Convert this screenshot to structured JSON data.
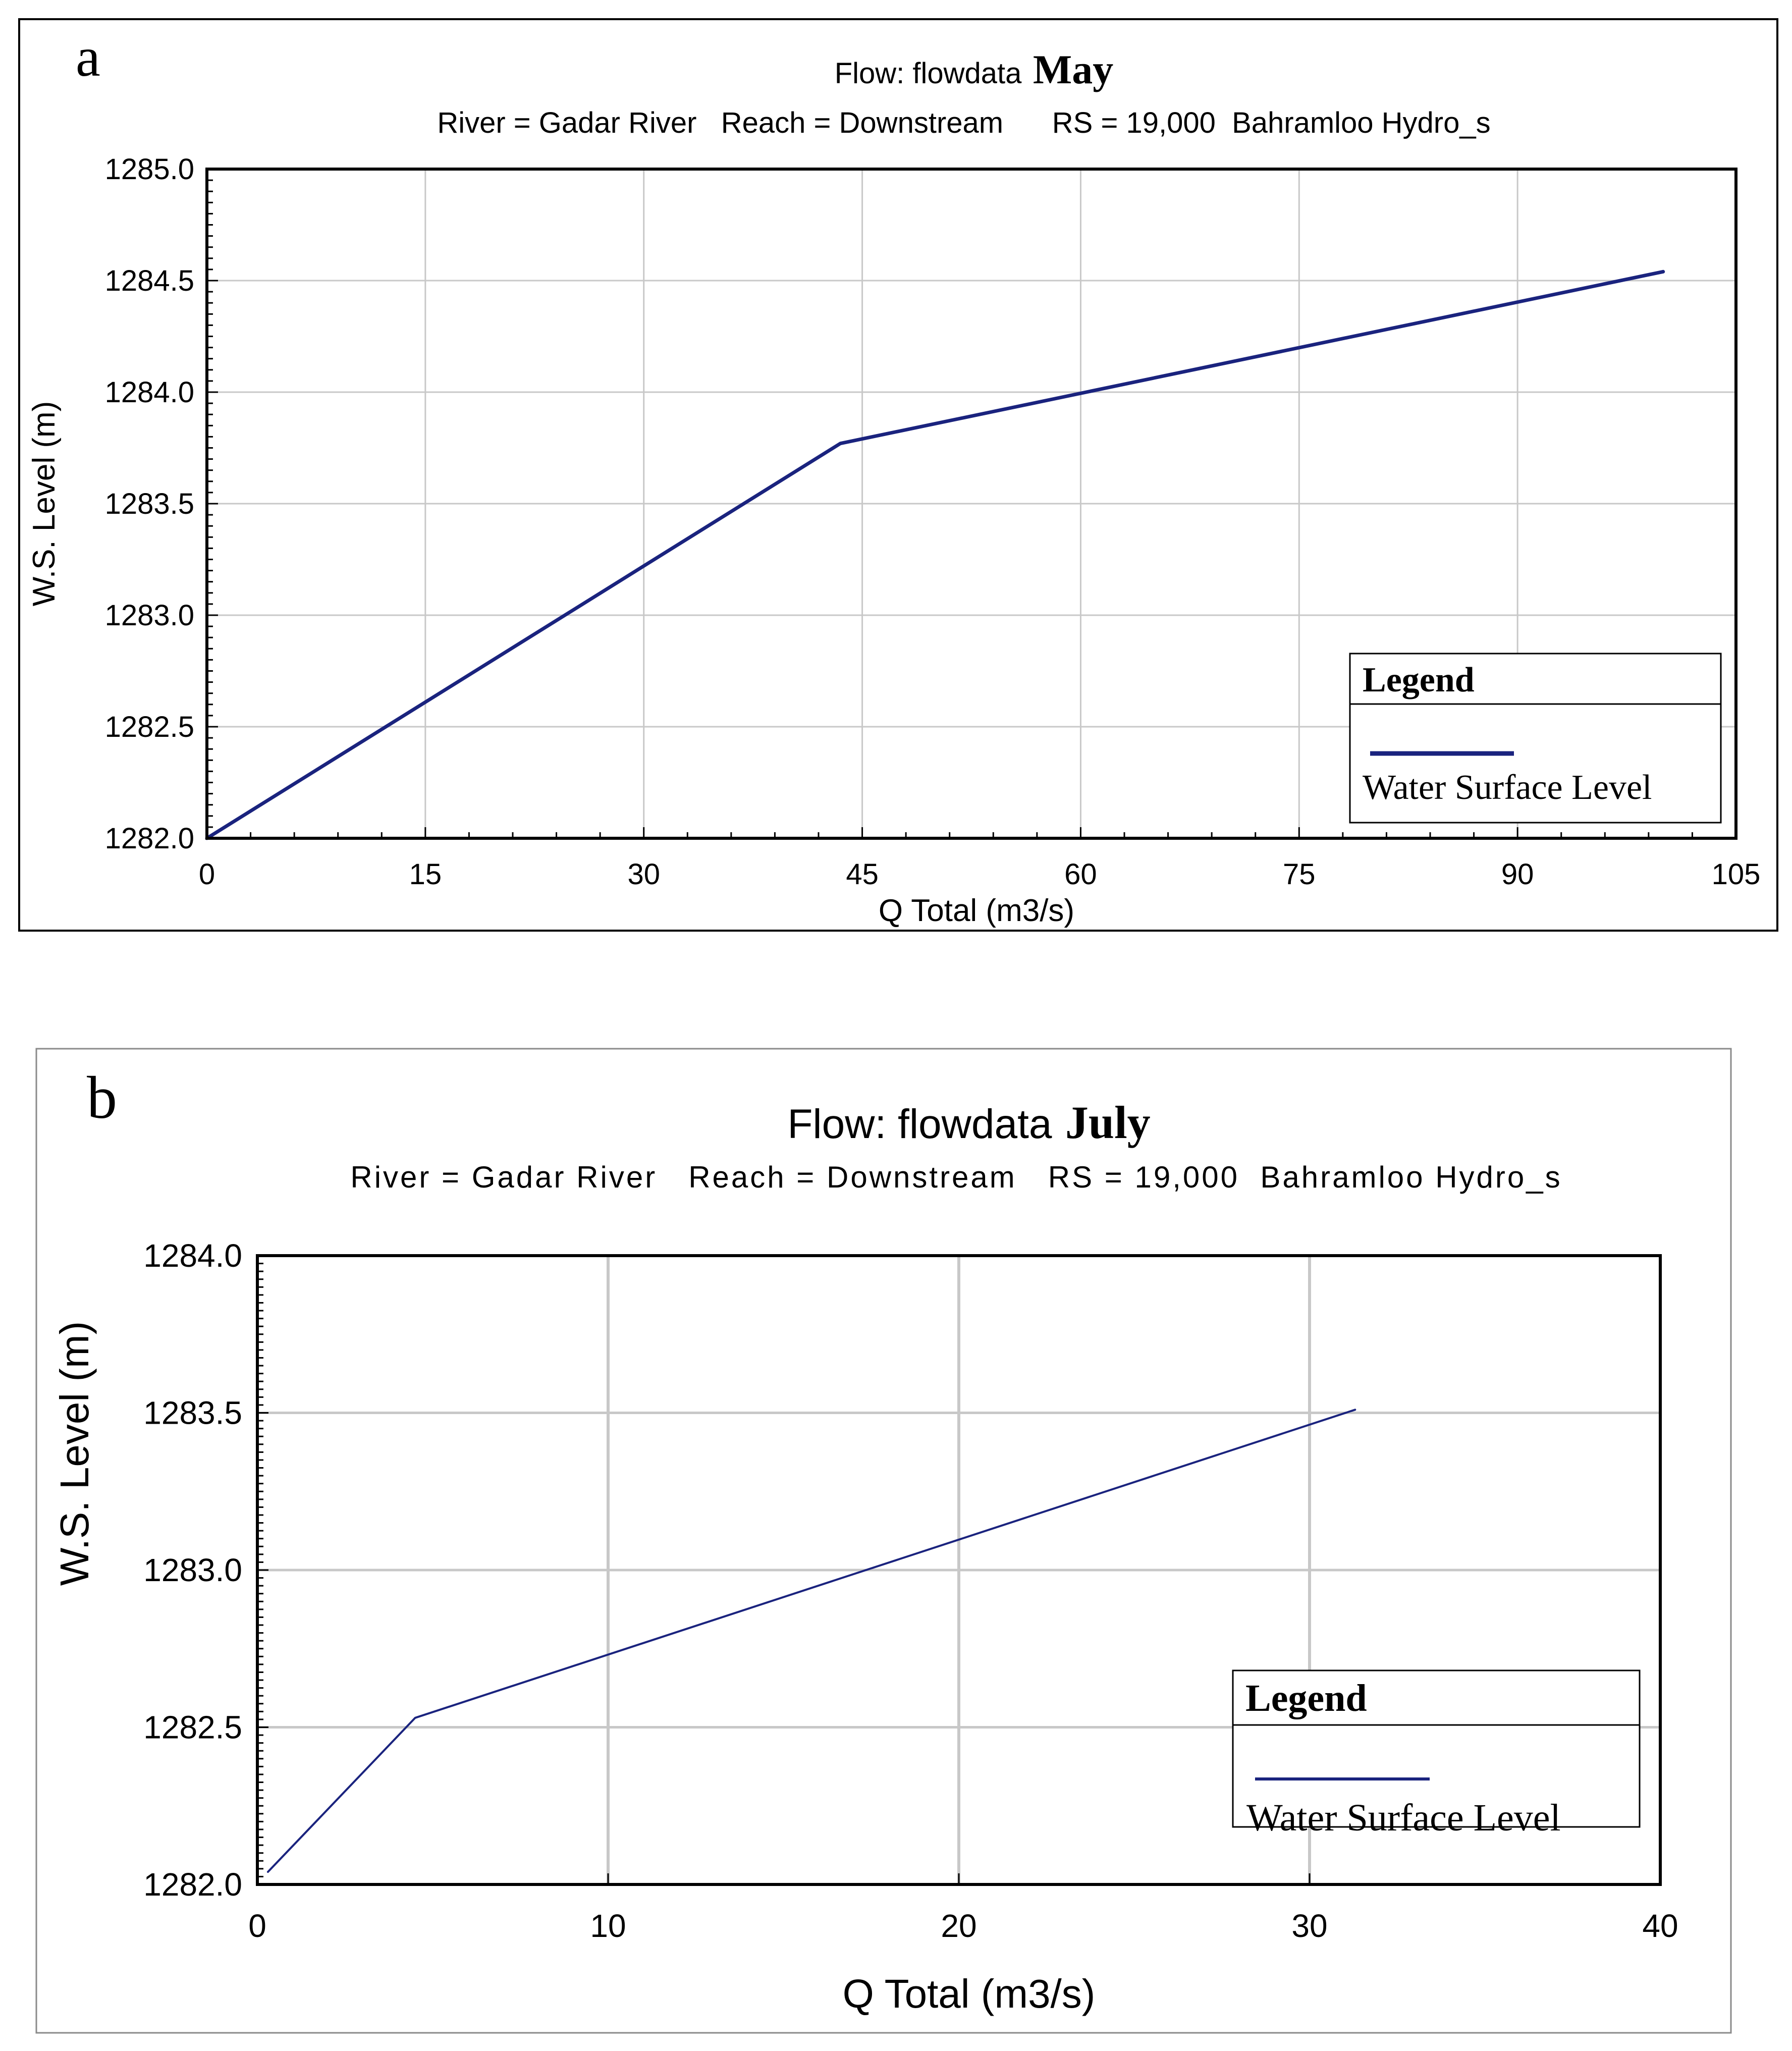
{
  "panels": [
    {
      "letter": "a",
      "title_prefix": "Flow: flowdata",
      "title_month": "May",
      "subtitle": "River = Gadar River   Reach = Downstream      RS = 19,000  Bahramloo Hydro_s",
      "legend_title": "Legend",
      "legend_label": "Water Surface Level"
    },
    {
      "letter": "b",
      "title_prefix": "Flow: flowdata",
      "title_month": "July",
      "subtitle": "River = Gadar River   Reach = Downstream   RS = 19,000  Bahramloo Hydro_s",
      "legend_title": "Legend",
      "legend_label": "Water Surface Level"
    }
  ],
  "colors": {
    "series": "#1a237e",
    "grid": "#c8c8c8",
    "frame": "#000000",
    "text": "#000000"
  },
  "chart_data": [
    {
      "type": "line",
      "title": "Flow: flowdata May",
      "subtitle": "River = Gadar River   Reach = Downstream      RS = 19,000  Bahramloo Hydro_s",
      "xlabel": "Q Total (m3/s)",
      "ylabel": "W.S. Level (m)",
      "xlim": [
        0,
        105
      ],
      "ylim": [
        1282.0,
        1285.0
      ],
      "xticks": [
        0,
        15,
        30,
        45,
        60,
        75,
        90,
        105
      ],
      "xtick_labels": [
        "0",
        "15",
        "30",
        "45",
        "60",
        "75",
        "90",
        "105"
      ],
      "yticks": [
        1282.0,
        1282.5,
        1283.0,
        1283.5,
        1284.0,
        1284.5,
        1285.0
      ],
      "ytick_labels": [
        "1282.0",
        "1282.5",
        "1283.0",
        "1283.5",
        "1284.0",
        "1284.5",
        "1285.0"
      ],
      "grid": true,
      "legend": "bottom-right",
      "series": [
        {
          "name": "Water Surface Level",
          "x": [
            0,
            43.5,
            100
          ],
          "y": [
            1282.0,
            1283.77,
            1284.54
          ]
        }
      ]
    },
    {
      "type": "line",
      "title": "Flow: flowdata July",
      "subtitle": "River = Gadar River   Reach = Downstream   RS = 19,000  Bahramloo Hydro_s",
      "xlabel": "Q Total (m3/s)",
      "ylabel": "W.S. Level (m)",
      "xlim": [
        0,
        40
      ],
      "ylim": [
        1282.0,
        1284.0
      ],
      "xticks": [
        0,
        10,
        20,
        30,
        40
      ],
      "xtick_labels": [
        "0",
        "10",
        "20",
        "30",
        "40"
      ],
      "yticks": [
        1282.0,
        1282.5,
        1283.0,
        1283.5,
        1284.0
      ],
      "ytick_labels": [
        "1282.0",
        "1282.5",
        "1283.0",
        "1283.5",
        "1284.0"
      ],
      "grid": true,
      "legend": "bottom-right",
      "series": [
        {
          "name": "Water Surface Level",
          "x": [
            0.3,
            4.5,
            31.3
          ],
          "y": [
            1282.04,
            1282.53,
            1283.51
          ]
        }
      ]
    }
  ]
}
